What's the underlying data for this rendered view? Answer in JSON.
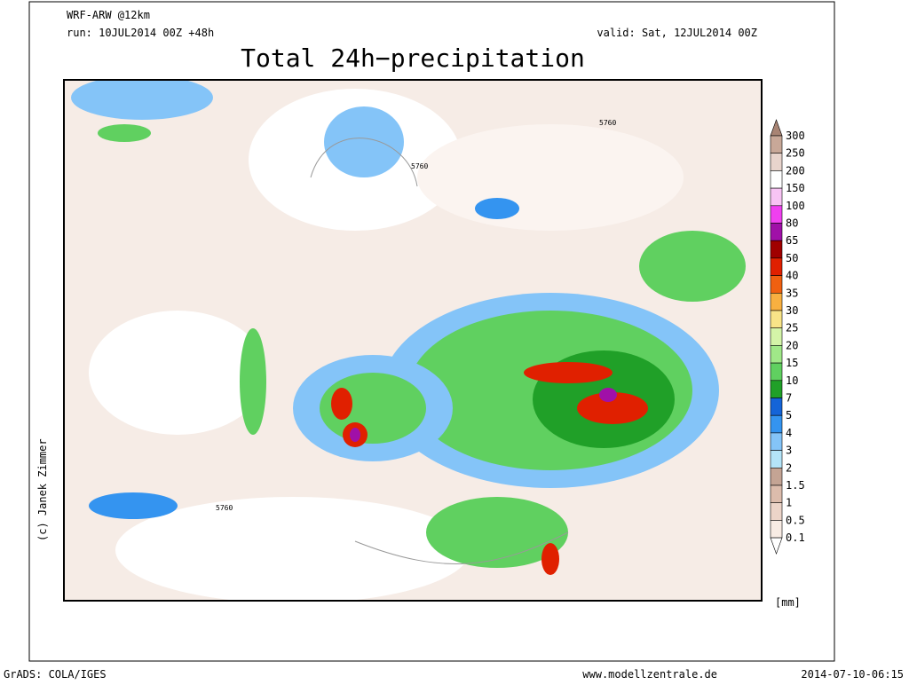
{
  "header": {
    "model": "WRF-ARW @12km",
    "run": "run: 10JUL2014 00Z +48h",
    "valid": "valid: Sat, 12JUL2014 00Z",
    "title": "Total 24h−precipitation"
  },
  "colorbar": {
    "unit": "[mm]",
    "levels": [
      300,
      250,
      200,
      150,
      100,
      80,
      65,
      50,
      40,
      35,
      30,
      25,
      20,
      15,
      10,
      7,
      5,
      4,
      3,
      2,
      1.5,
      1,
      0.5,
      0.1
    ],
    "colors": [
      "#a88474",
      "#c8a898",
      "#e8d4cc",
      "#ffffff",
      "#f8c4f4",
      "#f040f0",
      "#a010a8",
      "#a00000",
      "#e02000",
      "#f06010",
      "#f8b040",
      "#f8e488",
      "#d4f4a8",
      "#a0e888",
      "#60d060",
      "#20a028",
      "#1464d8",
      "#3494f0",
      "#84c4f8",
      "#b4e4f8",
      "#c4a494",
      "#dcbcac",
      "#ecd4c8",
      "#f8ece4",
      "#ffffff"
    ]
  },
  "map": {
    "contour_labels": [
      "5760",
      "5760",
      "5760"
    ],
    "copyright": "(c) Janek Zimmer"
  },
  "footer": {
    "software": "GrADS: COLA/IGES",
    "website": "www.modellzentrale.de",
    "timestamp": "2014-07-10-06:15"
  }
}
